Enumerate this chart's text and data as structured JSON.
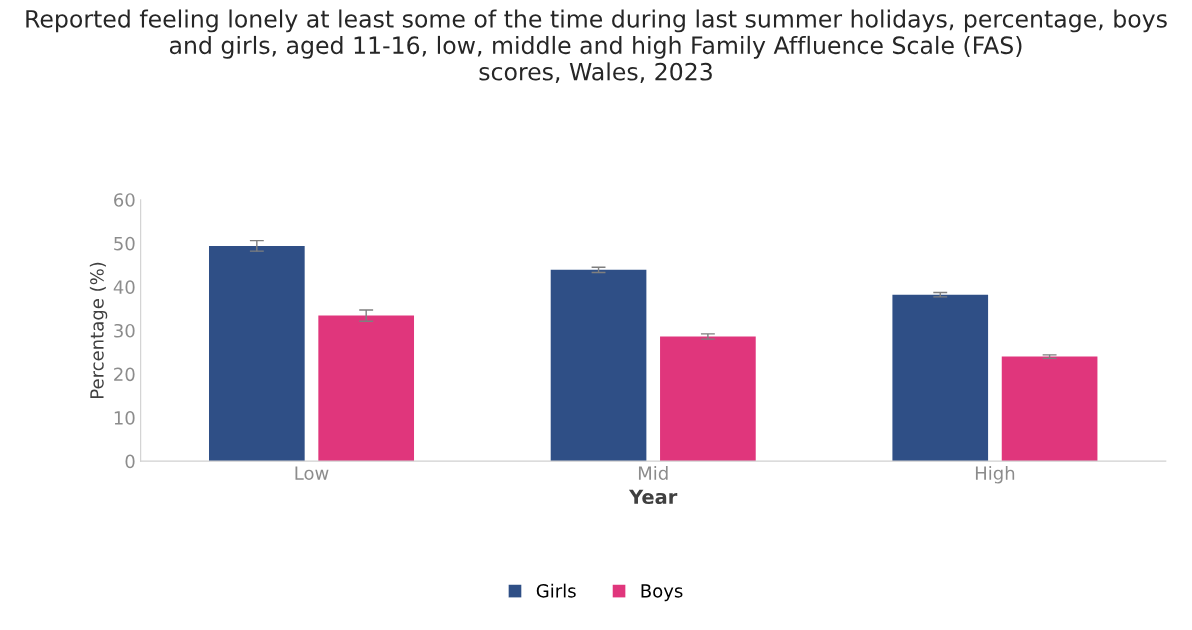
{
  "chart_data": {
    "type": "bar",
    "title": "Reported feeling lonely at least some of the time during last summer holidays, percentage, boys and girls, aged 11-16, low, middle and high Family Affluence Scale (FAS)\nscores, Wales, 2023",
    "xlabel": "Year",
    "ylabel": "Percentage (%)",
    "categories": [
      "Low",
      "Mid",
      "High"
    ],
    "series": [
      {
        "name": "Girls",
        "color": "#2f4f86",
        "values": [
          49.4,
          43.9,
          38.2
        ],
        "errors": [
          1.2,
          0.6,
          0.5
        ]
      },
      {
        "name": "Boys",
        "color": "#e0367c",
        "values": [
          33.4,
          28.6,
          24.0
        ],
        "errors": [
          1.3,
          0.6,
          0.4
        ]
      }
    ],
    "ylim": [
      0,
      60
    ],
    "yticks": [
      0,
      10,
      20,
      30,
      40,
      50,
      60
    ],
    "grid": false,
    "legend": "bottom"
  }
}
